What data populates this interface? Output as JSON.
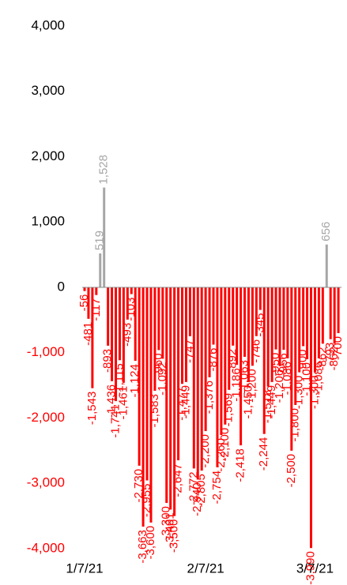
{
  "chart_data": {
    "type": "bar",
    "categories": [
      "1/7/21",
      null,
      null,
      null,
      null,
      null,
      null,
      null,
      null,
      null,
      null,
      null,
      null,
      null,
      null,
      null,
      null,
      null,
      null,
      null,
      null,
      null,
      null,
      null,
      null,
      null,
      null,
      null,
      null,
      null,
      null,
      "2/7/21",
      null,
      null,
      null,
      null,
      null,
      null,
      null,
      null,
      null,
      null,
      null,
      null,
      null,
      null,
      null,
      null,
      null,
      null,
      null,
      null,
      null,
      null,
      null,
      null,
      null,
      null,
      null,
      "3/7/21",
      null,
      null,
      null,
      null,
      null,
      null
    ],
    "values": [
      -56,
      -481,
      -1543,
      -117,
      519,
      1528,
      -893,
      -1436,
      -1741,
      -1115,
      -1461,
      -493,
      -103,
      -1124,
      -2730,
      -3663,
      -2955,
      -3600,
      -1583,
      -960,
      -1092,
      -3300,
      -3401,
      -3500,
      -2647,
      -1477,
      -1449,
      -747,
      -2772,
      -2940,
      -2805,
      -2200,
      -1376,
      -876,
      -2754,
      -2260,
      -2100,
      -1569,
      -892,
      -1186,
      -2418,
      -1063,
      -1450,
      -1200,
      -746,
      -345,
      -2244,
      -1518,
      -1449,
      -950,
      -1206,
      -956,
      -1086,
      -2500,
      -1800,
      -1300,
      -900,
      -1100,
      -3990,
      -1300,
      -1086,
      -862,
      656,
      -793,
      -862,
      -700
    ],
    "value_labels": [
      "-56",
      "-481",
      "-1,543",
      "-117",
      "519",
      "1,528",
      "-893",
      "-1,436",
      "-1,741",
      "-1,115",
      "-1,461",
      "-493",
      "-103",
      "-1,124",
      "-2,730",
      "-3,663",
      "-2,955",
      "-3,600",
      "-1,583",
      "-960",
      "-1,092",
      "-3,300",
      "-3,401",
      "-3,500",
      "-2,647",
      "-1,477",
      "-1,449",
      "-747",
      "-2,772",
      "-2,940",
      "-2,805",
      "-2,200",
      "-1,376",
      "-876",
      "-2,754",
      "-2,260",
      "-2,100",
      "-1,569",
      "-892",
      "-1,186",
      "-2,418",
      "-1,063",
      "-1,450",
      "-1,200",
      "-746",
      "-345",
      "-2,244",
      "-1,518",
      "-1,449",
      "-950",
      "-1,206",
      "-956",
      "-1,086",
      "-2,500",
      "-1,800",
      "-1,300",
      "-900",
      "-1,100",
      "-3,990",
      "-1,300",
      "-1,086",
      "-862",
      "656",
      "-793",
      "-862",
      "-700"
    ],
    "color": "#a6a6a6",
    "negative_color": "#ff0000",
    "ylim": [
      -4000,
      4000
    ],
    "yticks": [
      {
        "value": 4000,
        "label": "4,000"
      },
      {
        "value": 3000,
        "label": "3,000"
      },
      {
        "value": 2000,
        "label": "2,000"
      },
      {
        "value": 1000,
        "label": "1,000"
      },
      0,
      {
        "value": -1000,
        "label": "-1,000"
      },
      {
        "value": -2000,
        "label": "-2,000"
      },
      {
        "value": -3000,
        "label": "-3,000"
      },
      {
        "value": -4000,
        "label": "-4,000"
      }
    ]
  }
}
